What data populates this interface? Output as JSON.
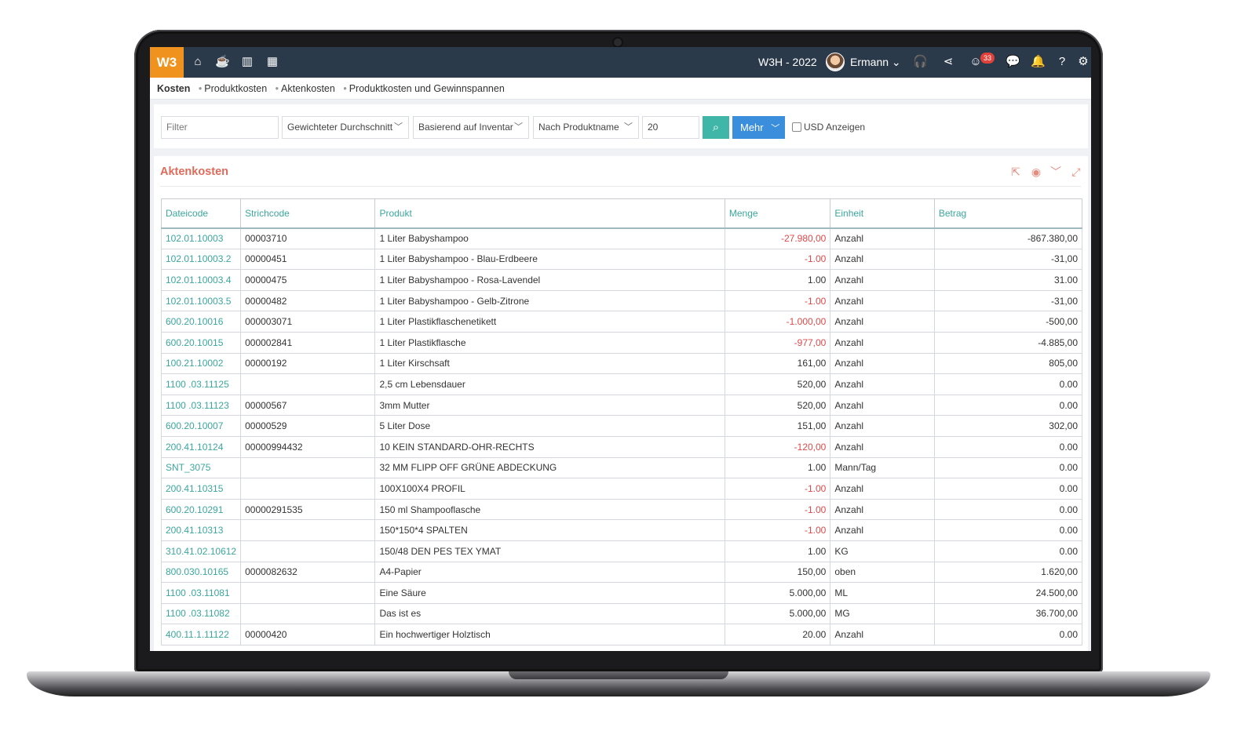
{
  "topbar": {
    "logo": "W3",
    "company": "W3H - 2022",
    "username": "Ermann",
    "notifications_count": "33",
    "icons": [
      "home-icon",
      "coffee-icon",
      "chart-icon",
      "calendar-icon",
      "headset-icon",
      "share-icon",
      "smiley-icon",
      "chat-icon",
      "bell-icon",
      "help-icon",
      "gear-icon"
    ]
  },
  "breadcrumb": {
    "root": "Kosten",
    "items": [
      "Produktkosten",
      "Aktenkosten",
      "Produktkosten und Gewinnspannen"
    ]
  },
  "filters": {
    "filter_placeholder": "Filter",
    "method": "Gewichteter Durchschnitt",
    "basis": "Basierend auf Inventar",
    "sort": "Nach Produktname",
    "limit": "20",
    "more_label": "Mehr",
    "usd_label": "USD Anzeigen"
  },
  "panel": {
    "title": "Aktenkosten",
    "columns": [
      "Dateicode",
      "Strichcode",
      "Produkt",
      "Menge",
      "Einheit",
      "Betrag"
    ],
    "rows": [
      {
        "code": "102.01.10003",
        "barcode": "00003710",
        "product": "1 Liter Babyshampoo",
        "qty": "-27.980,00",
        "unit": "Anzahl",
        "amount": "-867.380,00",
        "neg": true
      },
      {
        "code": "102.01.10003.2",
        "barcode": "00000451",
        "product": "1 Liter Babyshampoo - Blau-Erdbeere",
        "qty": "-1.00",
        "unit": "Anzahl",
        "amount": "-31,00",
        "neg": true
      },
      {
        "code": "102.01.10003.4",
        "barcode": "00000475",
        "product": "1 Liter Babyshampoo - Rosa-Lavendel",
        "qty": "1.00",
        "unit": "Anzahl",
        "amount": "31.00",
        "neg": false
      },
      {
        "code": "102.01.10003.5",
        "barcode": "00000482",
        "product": "1 Liter Babyshampoo - Gelb-Zitrone",
        "qty": "-1.00",
        "unit": "Anzahl",
        "amount": "-31,00",
        "neg": true
      },
      {
        "code": "600.20.10016",
        "barcode": "000003071",
        "product": "1 Liter Plastikflaschenetikett",
        "qty": "-1.000,00",
        "unit": "Anzahl",
        "amount": "-500,00",
        "neg": true
      },
      {
        "code": "600.20.10015",
        "barcode": "000002841",
        "product": "1 Liter Plastikflasche",
        "qty": "-977,00",
        "unit": "Anzahl",
        "amount": "-4.885,00",
        "neg": true
      },
      {
        "code": "100.21.10002",
        "barcode": "00000192",
        "product": "1 Liter Kirschsaft",
        "qty": "161,00",
        "unit": "Anzahl",
        "amount": "805,00",
        "neg": false
      },
      {
        "code": "1100 .03.11125",
        "barcode": "",
        "product": "2,5 cm Lebensdauer",
        "qty": "520,00",
        "unit": "Anzahl",
        "amount": "0.00",
        "neg": false
      },
      {
        "code": "1100 .03.11123",
        "barcode": "00000567",
        "product": "3mm Mutter",
        "qty": "520,00",
        "unit": "Anzahl",
        "amount": "0.00",
        "neg": false
      },
      {
        "code": "600.20.10007",
        "barcode": "00000529",
        "product": "5 Liter Dose",
        "qty": "151,00",
        "unit": "Anzahl",
        "amount": "302,00",
        "neg": false
      },
      {
        "code": "200.41.10124",
        "barcode": "00000994432",
        "product": "10 KEIN STANDARD-OHR-RECHTS",
        "qty": "-120,00",
        "unit": "Anzahl",
        "amount": "0.00",
        "neg": true
      },
      {
        "code": "SNT_3075",
        "barcode": "",
        "product": "32 MM FLIPP OFF GRÜNE ABDECKUNG",
        "qty": "1.00",
        "unit": "Mann/Tag",
        "amount": "0.00",
        "neg": false
      },
      {
        "code": "200.41.10315",
        "barcode": "",
        "product": "100X100X4 PROFIL",
        "qty": "-1.00",
        "unit": "Anzahl",
        "amount": "0.00",
        "neg": true
      },
      {
        "code": "600.20.10291",
        "barcode": "00000291535",
        "product": "150 ml Shampooflasche",
        "qty": "-1.00",
        "unit": "Anzahl",
        "amount": "0.00",
        "neg": true
      },
      {
        "code": "200.41.10313",
        "barcode": "",
        "product": "150*150*4 SPALTEN",
        "qty": "-1.00",
        "unit": "Anzahl",
        "amount": "0.00",
        "neg": true
      },
      {
        "code": "310.41.02.10612",
        "barcode": "",
        "product": "150/48 DEN PES TEX YMAT",
        "qty": "1.00",
        "unit": "KG",
        "amount": "0.00",
        "neg": false
      },
      {
        "code": "800.030.10165",
        "barcode": "0000082632",
        "product": "A4-Papier",
        "qty": "150,00",
        "unit": "oben",
        "amount": "1.620,00",
        "neg": false
      },
      {
        "code": "1100 .03.11081",
        "barcode": "",
        "product": "Eine Säure",
        "qty": "5.000,00",
        "unit": "ML",
        "amount": "24.500,00",
        "neg": false
      },
      {
        "code": "1100 .03.11082",
        "barcode": "",
        "product": "Das ist es",
        "qty": "5.000,00",
        "unit": "MG",
        "amount": "36.700,00",
        "neg": false
      },
      {
        "code": "400.11.1.11122",
        "barcode": "00000420",
        "product": "Ein hochwertiger Holztisch",
        "qty": "20.00",
        "unit": "Anzahl",
        "amount": "0.00",
        "neg": false
      }
    ]
  },
  "colors": {
    "topbar": "#2b3a4a",
    "logo": "#f0931e",
    "accent": "#3aa79c",
    "title": "#e06a5a",
    "negative": "#e04848",
    "search": "#3fb6a8",
    "more": "#3b8edb"
  }
}
